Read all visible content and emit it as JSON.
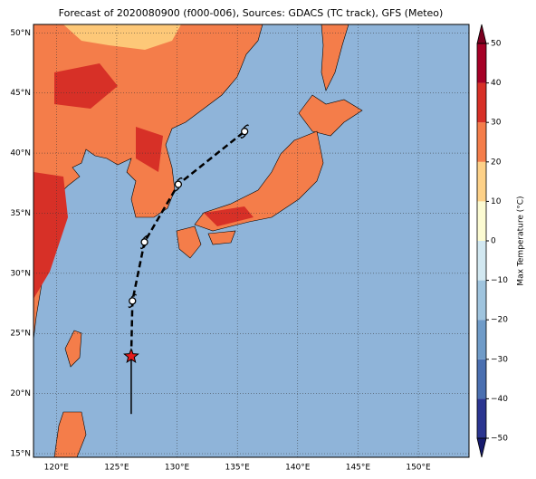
{
  "map": {
    "title": "Forecast of 2020080900 (f000-006), Sources: GDACS (TC track), GFS (Meteo)",
    "lonlim": [
      118.1,
      154.2
    ],
    "latlim": [
      14.7,
      50.7
    ],
    "lonticks": [
      {
        "value": 120,
        "label": "120°E"
      },
      {
        "value": 125,
        "label": "125°E"
      },
      {
        "value": 130,
        "label": "130°E"
      },
      {
        "value": 135,
        "label": "135°E"
      },
      {
        "value": 140,
        "label": "140°E"
      },
      {
        "value": 145,
        "label": "145°E"
      },
      {
        "value": 150,
        "label": "150°E"
      }
    ],
    "latticks": [
      {
        "value": 15,
        "label": "15°N"
      },
      {
        "value": 20,
        "label": "20°N"
      },
      {
        "value": 25,
        "label": "25°N"
      },
      {
        "value": 30,
        "label": "30°N"
      },
      {
        "value": 35,
        "label": "35°N"
      },
      {
        "value": 40,
        "label": "40°N"
      },
      {
        "value": 45,
        "label": "45°N"
      },
      {
        "value": 50,
        "label": "50°N"
      }
    ],
    "grid": true,
    "observed_track": {
      "lon": [
        126.2,
        126.2
      ],
      "lat": [
        18.3,
        23.1
      ]
    },
    "forecast_track": {
      "lon": [
        126.2,
        126.3,
        127.3,
        130.1,
        135.6
      ],
      "lat": [
        23.1,
        27.7,
        32.6,
        37.4,
        41.8
      ]
    },
    "colorbar": {
      "label": "Max Temperature (°C)",
      "lim": [
        -50,
        50
      ],
      "ticks": [
        {
          "value": -50,
          "label": "−50"
        },
        {
          "value": -40,
          "label": "−40"
        },
        {
          "value": -30,
          "label": "−30"
        },
        {
          "value": -20,
          "label": "−20"
        },
        {
          "value": -10,
          "label": "−10"
        },
        0,
        10,
        20,
        30,
        40,
        50
      ],
      "colors": [
        "#2b3590",
        "#4a6fb0",
        "#6f9bc8",
        "#9fc4de",
        "#d2e8f1",
        "#fcfbd2",
        "#fdd188",
        "#f47d4a",
        "#d73027",
        "#a50026"
      ],
      "under_color": "#171b6e",
      "over_color": "#7a0020"
    }
  }
}
